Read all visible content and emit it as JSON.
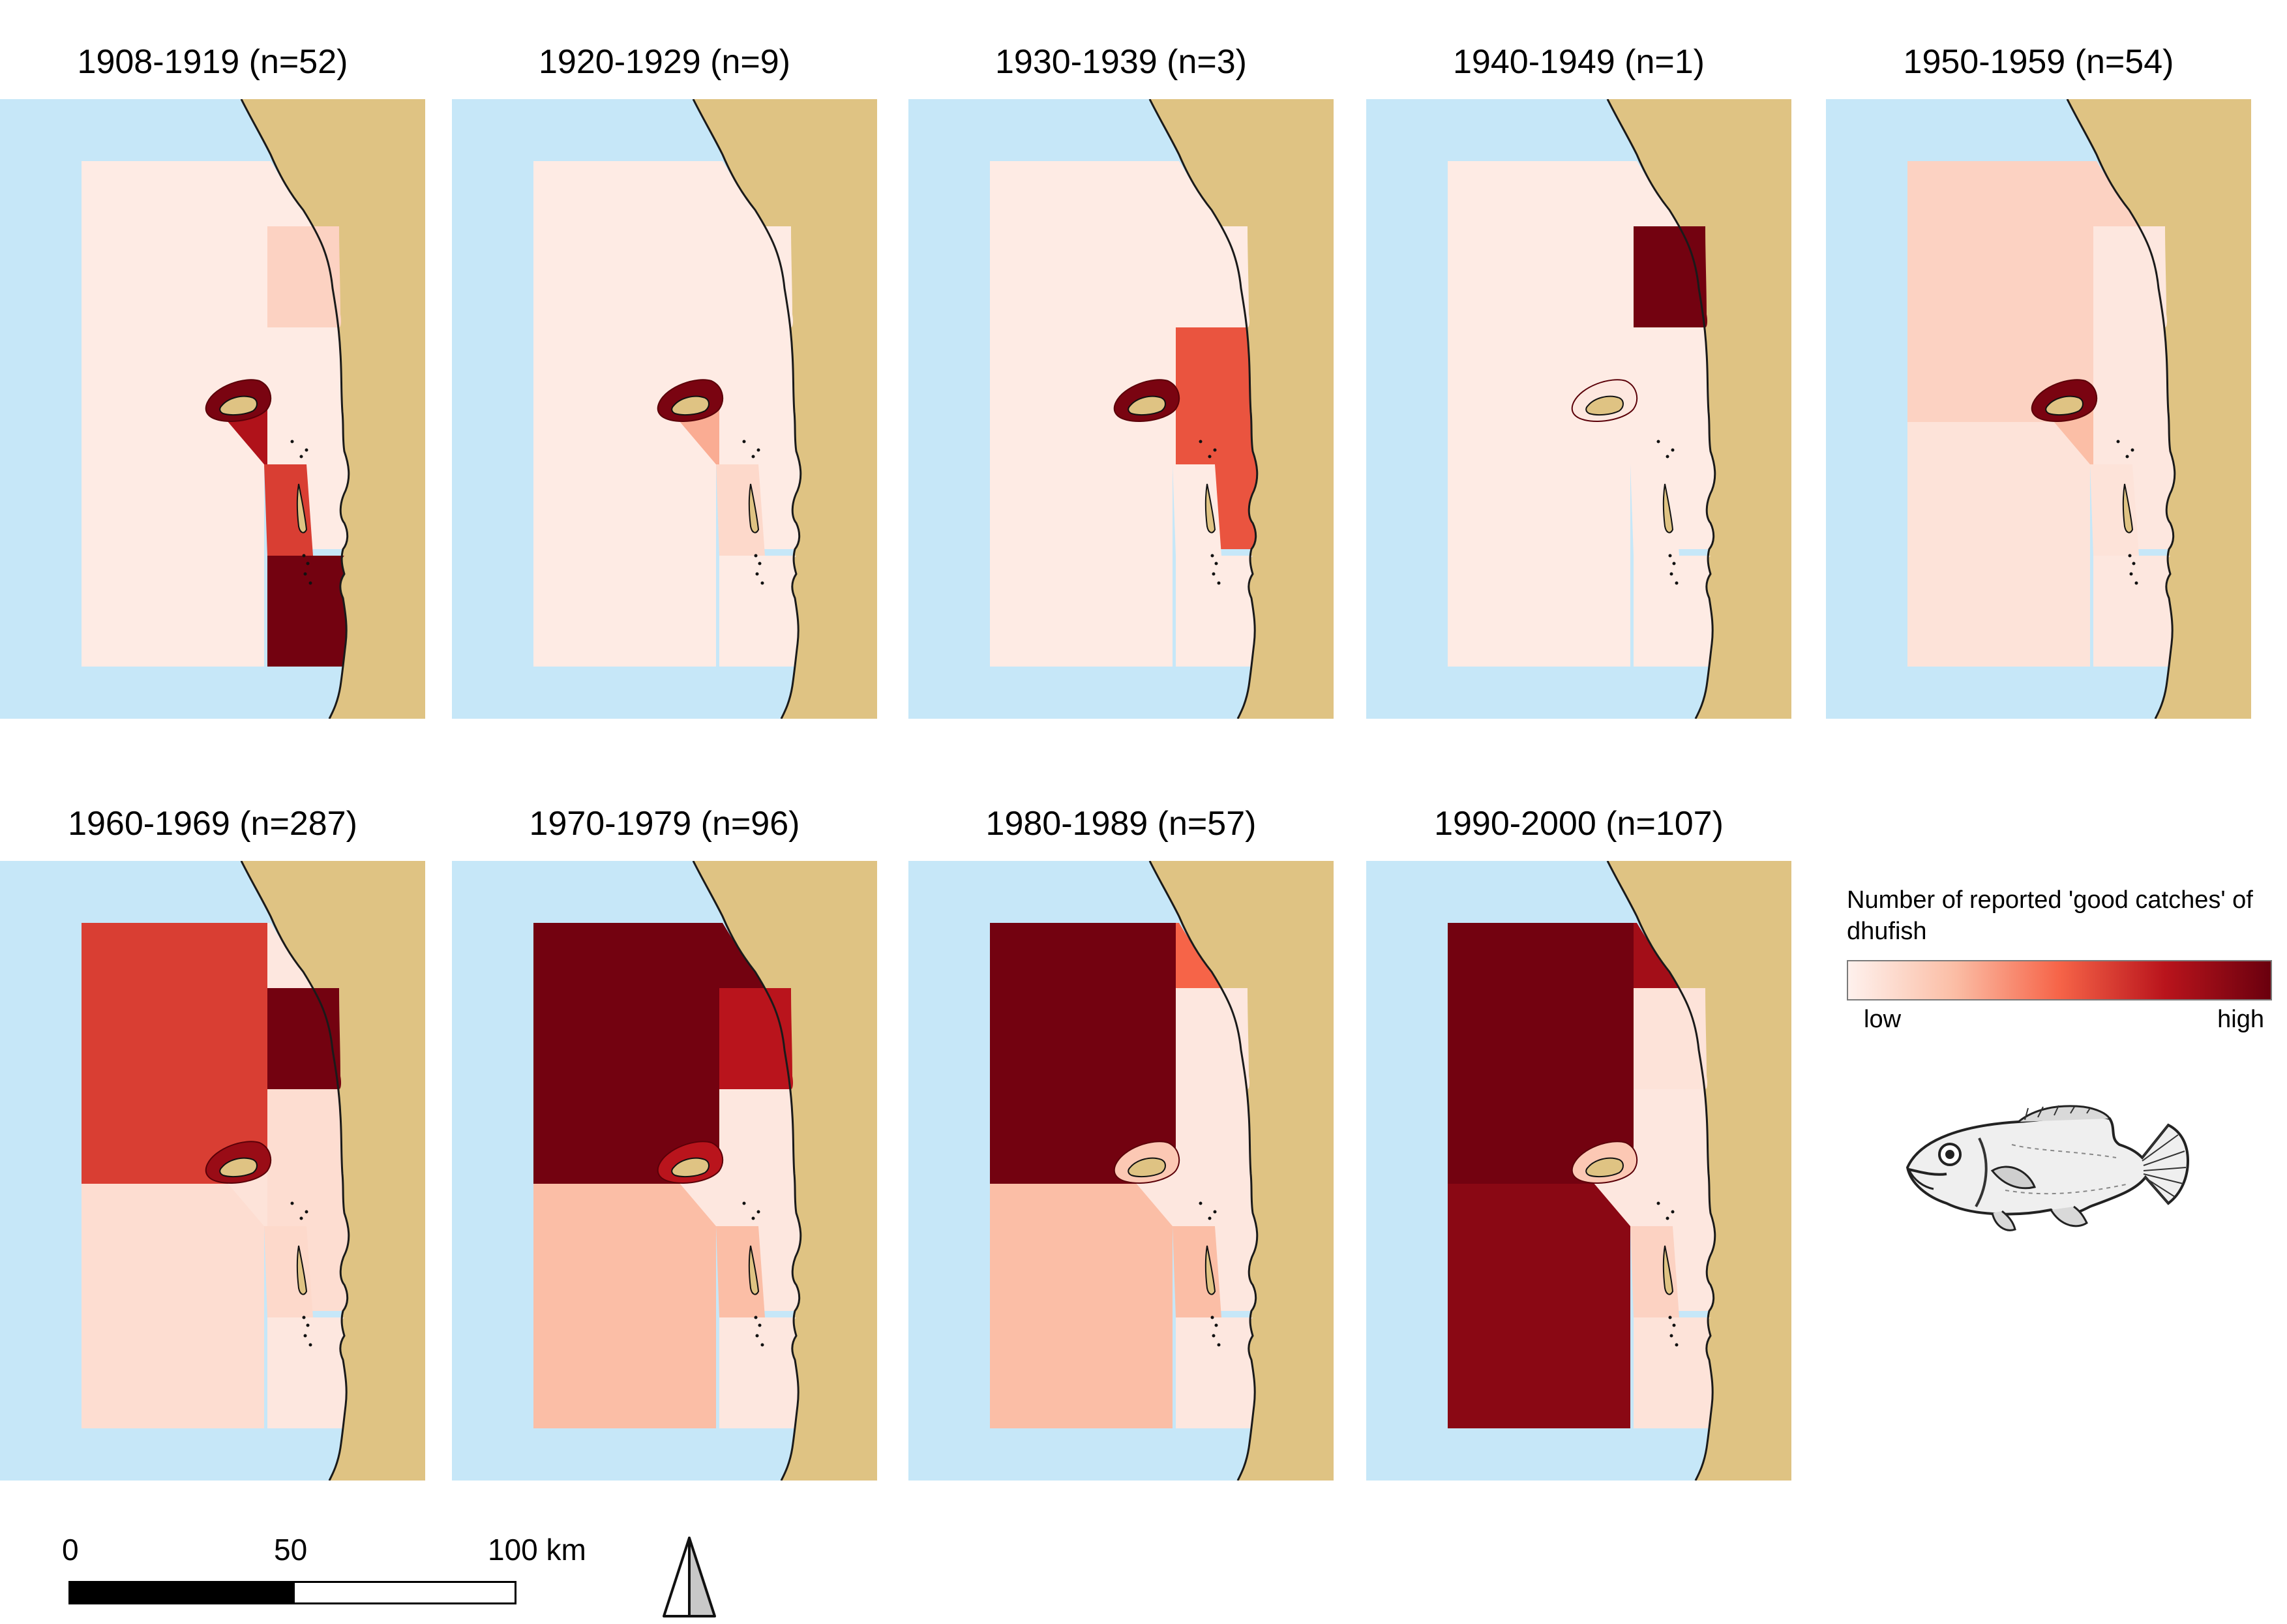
{
  "colors": {
    "land": "#dfc383",
    "water": "#c6e7f8",
    "coast_line": "#1a1a1a",
    "island_outline": "#7a0a0a",
    "scale_low": "#fef1ed",
    "scale_high": "#6a000e"
  },
  "panels": [
    {
      "title": "1908-1919 (n=52)",
      "levels": {
        "north": 0.03,
        "nw": 0.03,
        "ne": 0.15,
        "near_island": 0.78,
        "inshore_mid": 0.03,
        "south_w": 0.03,
        "south_mid": 0.62,
        "south_e": 0.97,
        "islands": 0.95
      }
    },
    {
      "title": "1920-1929 (n=9)",
      "levels": {
        "north": 0.03,
        "nw": 0.03,
        "ne": 0.03,
        "near_island": 0.3,
        "inshore_mid": 0.03,
        "south_w": 0.03,
        "south_mid": 0.12,
        "south_e": 0.03,
        "islands": 0.95
      }
    },
    {
      "title": "1930-1939 (n=3)",
      "levels": {
        "north": 0.03,
        "nw": 0.03,
        "ne": 0.03,
        "near_island": 0.03,
        "inshore_mid": 0.55,
        "south_w": 0.03,
        "south_mid": 0.03,
        "south_e": 0.03,
        "islands": 0.95
      }
    },
    {
      "title": "1940-1949 (n=1)",
      "levels": {
        "north": 0.03,
        "nw": 0.03,
        "ne": 0.97,
        "near_island": 0.03,
        "inshore_mid": 0.03,
        "south_w": 0.03,
        "south_mid": 0.03,
        "south_e": 0.03,
        "islands": 0.05
      }
    },
    {
      "title": "1950-1959 (n=54)",
      "levels": {
        "north": 0.15,
        "nw": 0.15,
        "ne": 0.05,
        "near_island": 0.25,
        "inshore_mid": 0.05,
        "south_w": 0.07,
        "south_mid": 0.07,
        "south_e": 0.05,
        "islands": 0.95
      }
    },
    {
      "title": "1960-1969 (n=287)",
      "levels": {
        "north": 0.05,
        "nw": 0.62,
        "ne": 0.97,
        "near_island": 0.07,
        "inshore_mid": 0.1,
        "south_w": 0.1,
        "south_mid": 0.12,
        "south_e": 0.05,
        "islands": 0.85
      }
    },
    {
      "title": "1970-1979 (n=96)",
      "levels": {
        "north": 0.97,
        "nw": 0.97,
        "ne": 0.75,
        "near_island": 0.05,
        "inshore_mid": 0.05,
        "south_w": 0.25,
        "south_mid": 0.25,
        "south_e": 0.05,
        "islands": 0.75
      }
    },
    {
      "title": "1980-1989 (n=57)",
      "levels": {
        "north": 0.5,
        "nw": 0.97,
        "ne": 0.05,
        "near_island": 0.05,
        "inshore_mid": 0.05,
        "south_w": 0.25,
        "south_mid": 0.25,
        "south_e": 0.05,
        "islands": 0.2
      }
    },
    {
      "title": "1990-2000 (n=107)",
      "levels": {
        "north": 0.82,
        "nw": 0.97,
        "ne": 0.07,
        "near_island": 0.05,
        "inshore_mid": 0.05,
        "south_w": 0.9,
        "south_mid": 0.15,
        "south_e": 0.07,
        "islands": 0.2
      }
    }
  ],
  "legend": {
    "title": "Number of reported 'good catches' of dhufish",
    "low": "low",
    "high": "high"
  },
  "scalebar": {
    "label_0": "0",
    "label_50": "50",
    "label_100": "100 km"
  },
  "north_arrow_icon": "north-arrow-icon",
  "fish_icon": "dhufish-illustration"
}
